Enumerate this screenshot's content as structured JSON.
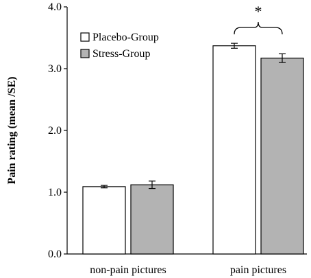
{
  "chart_data": {
    "type": "bar",
    "ylabel": "Pain rating (mean /SE)",
    "ylim": [
      0,
      4
    ],
    "yticks": [
      "0.0",
      "1.0",
      "2.0",
      "3.0",
      "4.0"
    ],
    "categories": [
      "non-pain pictures",
      "pain pictures"
    ],
    "series": [
      {
        "name": "Placebo-Group",
        "color": "#ffffff",
        "values": [
          1.09,
          3.37
        ],
        "se": [
          0.02,
          0.04
        ]
      },
      {
        "name": "Stress-Group",
        "color": "#b3b3b3",
        "values": [
          1.12,
          3.17
        ],
        "se": [
          0.06,
          0.07
        ]
      }
    ],
    "legend_position": "top-left",
    "annotation": {
      "text": "*",
      "category": "pain pictures"
    },
    "grid": false
  }
}
